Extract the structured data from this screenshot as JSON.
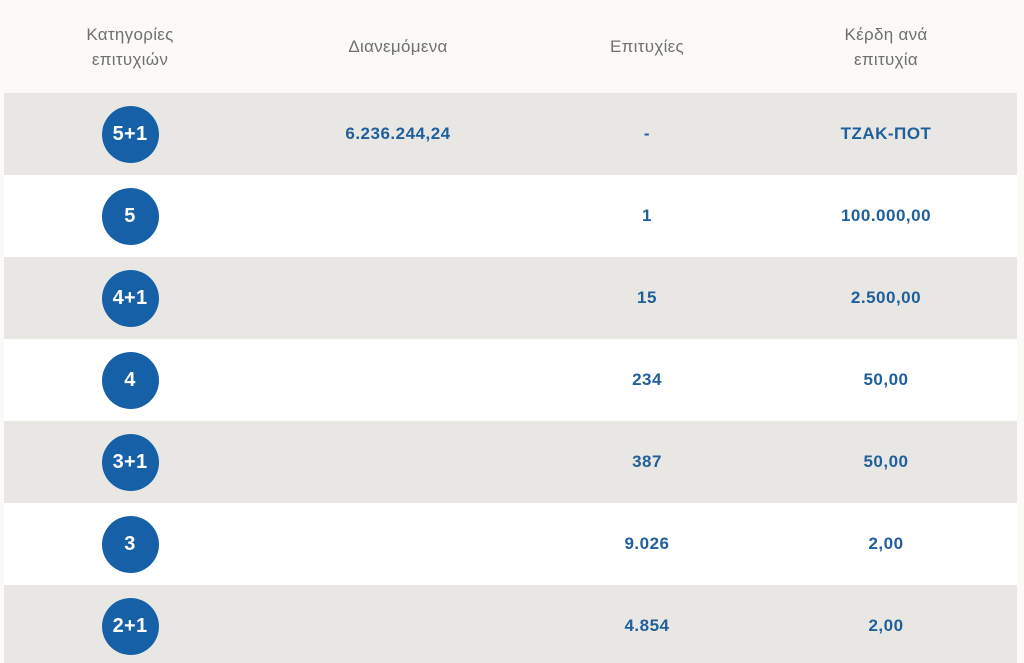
{
  "header": {
    "col1_line1": "Κατηγορίες",
    "col1_line2": "επιτυχιών",
    "col2": "Διανεμόμενα",
    "col3": "Επιτυχίες",
    "col4_line1": "Κέρδη ανά",
    "col4_line2": "επιτυχία"
  },
  "rows": [
    {
      "category": "5+1",
      "distributed": "6.236.244,24",
      "winners": "-",
      "prize": "ΤΖΑΚ-ΠΟΤ"
    },
    {
      "category": "5",
      "distributed": "",
      "winners": "1",
      "prize": "100.000,00"
    },
    {
      "category": "4+1",
      "distributed": "",
      "winners": "15",
      "prize": "2.500,00"
    },
    {
      "category": "4",
      "distributed": "",
      "winners": "234",
      "prize": "50,00"
    },
    {
      "category": "3+1",
      "distributed": "",
      "winners": "387",
      "prize": "50,00"
    },
    {
      "category": "3",
      "distributed": "",
      "winners": "9.026",
      "prize": "2,00"
    },
    {
      "category": "2+1",
      "distributed": "",
      "winners": "4.854",
      "prize": "2,00"
    }
  ],
  "colors": {
    "badge": "#1660a8",
    "value_text": "#1f5f9c",
    "header_text": "#707070",
    "row_shaded": "#e9e7e4",
    "row_plain": "#ffffff",
    "page_bg": "#fbfaf7"
  }
}
